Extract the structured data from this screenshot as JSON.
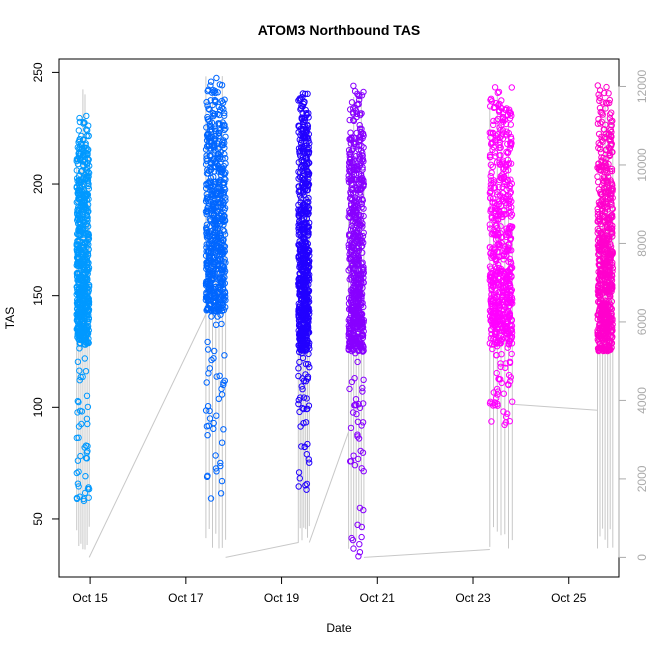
{
  "chart_data": {
    "type": "scatter",
    "title": "ATOM3 Northbound TAS",
    "xlabel": "Date",
    "ylabel": "TAS",
    "x_ticks": [
      "Oct 15",
      "Oct 17",
      "Oct 19",
      "Oct 21",
      "Oct 23",
      "Oct 25"
    ],
    "x_tick_values": [
      15,
      17,
      19,
      21,
      23,
      25
    ],
    "xlim": [
      14.35,
      26.05
    ],
    "ylim": [
      24,
      256
    ],
    "y_ticks": [
      50,
      100,
      150,
      200,
      250
    ],
    "y2_label": "",
    "y2lim": [
      -500,
      12700
    ],
    "y2_ticks": [
      0,
      2000,
      4000,
      6000,
      8000,
      10000,
      12000
    ],
    "y2_color": "#aaaaaa",
    "grid": false,
    "legend": "none",
    "series": [
      {
        "color": "#0099ff",
        "x_range": [
          14.72,
          14.98
        ],
        "tas_dense": [
          128,
          232
        ],
        "tas_sparse": [
          58,
          128
        ],
        "alt_max": 12100
      },
      {
        "color": "#0066ff",
        "x_range": [
          17.42,
          17.83
        ],
        "tas_dense": [
          143,
          252
        ],
        "tas_sparse": [
          59,
          143
        ],
        "alt_max": 12300
      },
      {
        "color": "#2200ff",
        "x_range": [
          19.35,
          19.58
        ],
        "tas_dense": [
          125,
          246
        ],
        "tas_sparse": [
          63,
          125
        ],
        "alt_max": 12100
      },
      {
        "color": "#8800ff",
        "x_range": [
          20.4,
          20.72
        ],
        "tas_dense": [
          125,
          245
        ],
        "tas_sparse": [
          32,
          125
        ],
        "alt_max": 12000
      },
      {
        "color": "#ff00ff",
        "x_range": [
          23.35,
          23.82
        ],
        "tas_dense": [
          128,
          246
        ],
        "tas_sparse": [
          90,
          128
        ],
        "alt_max": 12000
      },
      {
        "color": "#ff00cc",
        "x_range": [
          25.6,
          25.92
        ],
        "tas_dense": [
          125,
          246
        ],
        "tas_sparse": [
          126,
          145
        ],
        "alt_max": 12000
      }
    ],
    "altitude_series": {
      "color": "#c8c8c8",
      "connectors": [
        {
          "x": [
            14.98,
            17.42
          ],
          "y": [
            0,
            6200
          ]
        },
        {
          "x": [
            17.83,
            19.35
          ],
          "y": [
            0,
            380
          ]
        },
        {
          "x": [
            19.58,
            20.4
          ],
          "y": [
            380,
            3200
          ]
        },
        {
          "x": [
            20.72,
            23.35
          ],
          "y": [
            0,
            200
          ]
        },
        {
          "x": [
            23.82,
            25.6
          ],
          "y": [
            3900,
            3750
          ]
        }
      ]
    }
  }
}
